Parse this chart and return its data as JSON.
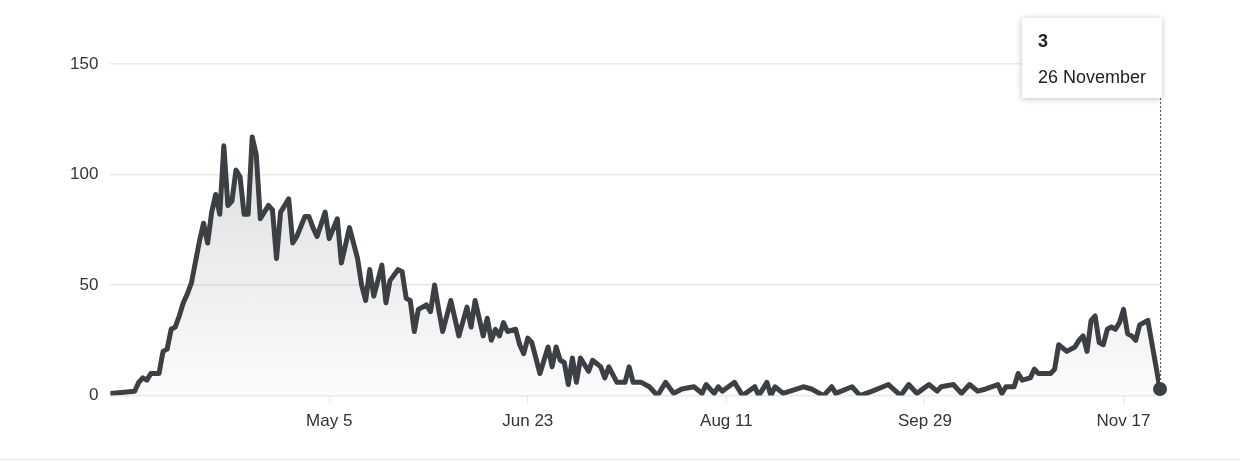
{
  "chart_data": {
    "type": "area",
    "x": [
      "--03-12",
      "--03-18",
      "--03-19",
      "--03-20",
      "--03-21",
      "--03-22",
      "--03-24",
      "--03-25",
      "--03-26",
      "--03-27",
      "--03-28",
      "--03-29",
      "--03-30",
      "--03-31",
      "--04-01",
      "--04-03",
      "--04-04",
      "--04-05",
      "--04-06",
      "--04-07",
      "--04-08",
      "--04-09",
      "--04-10",
      "--04-11",
      "--04-12",
      "--04-13",
      "--04-14",
      "--04-15",
      "--04-16",
      "--04-17",
      "--04-18",
      "--04-20",
      "--04-21",
      "--04-22",
      "--04-23",
      "--04-25",
      "--04-26",
      "--04-27",
      "--04-29",
      "--04-30",
      "--05-01",
      "--05-02",
      "--05-04",
      "--05-05",
      "--05-07",
      "--05-08",
      "--05-10",
      "--05-12",
      "--05-13",
      "--05-14",
      "--05-15",
      "--05-16",
      "--05-18",
      "--05-19",
      "--05-20",
      "--05-22",
      "--05-23",
      "--05-24",
      "--05-25",
      "--05-26",
      "--05-27",
      "--05-29",
      "--05-30",
      "--05-31",
      "--06-01",
      "--06-02",
      "--06-04",
      "--06-06",
      "--06-08",
      "--06-09",
      "--06-10",
      "--06-12",
      "--06-13",
      "--06-14",
      "--06-15",
      "--06-16",
      "--06-17",
      "--06-18",
      "--06-20",
      "--06-21",
      "--06-22",
      "--06-23",
      "--06-24",
      "--06-26",
      "--06-28",
      "--06-29",
      "--06-30",
      "--07-01",
      "--07-02",
      "--07-03",
      "--07-04",
      "--07-05",
      "--07-06",
      "--07-08",
      "--07-09",
      "--07-11",
      "--07-12",
      "--07-13",
      "--07-15",
      "--07-17",
      "--07-18",
      "--07-19",
      "--07-21",
      "--07-23",
      "--07-25",
      "--07-27",
      "--07-29",
      "--07-31",
      "--08-03",
      "--08-05",
      "--08-06",
      "--08-08",
      "--08-09",
      "--08-10",
      "--08-13",
      "--08-15",
      "--08-18",
      "--08-19",
      "--08-21",
      "--08-22",
      "--08-23",
      "--08-25",
      "--08-30",
      "--09-01",
      "--09-04",
      "--09-06",
      "--09-07",
      "--09-11",
      "--09-13",
      "--09-16",
      "--09-20",
      "--09-23",
      "--09-25",
      "--09-27",
      "--09-30",
      "--10-02",
      "--10-03",
      "--10-06",
      "--10-08",
      "--10-10",
      "--10-12",
      "--10-14",
      "--10-17",
      "--10-18",
      "--10-19",
      "--10-21",
      "--10-22",
      "--10-23",
      "--10-25",
      "--10-26",
      "--10-27",
      "--10-30",
      "--10-31",
      "--11-01",
      "--11-03",
      "--11-05",
      "--11-06",
      "--11-07",
      "--11-08",
      "--11-09",
      "--11-10",
      "--11-11",
      "--11-12",
      "--11-13",
      "--11-14",
      "--11-15",
      "--11-16",
      "--11-17",
      "--11-18",
      "--11-19",
      "--11-20",
      "--11-21",
      "--11-23",
      "--11-26"
    ],
    "series": [
      {
        "color": "#3c3f43",
        "values": [
          1,
          2,
          6,
          8,
          7,
          10,
          10,
          20,
          21,
          30,
          31,
          36,
          42,
          46,
          51,
          70,
          78,
          69,
          83,
          91,
          82,
          113,
          86,
          88,
          102,
          99,
          82,
          82,
          117,
          109,
          80,
          86,
          84,
          62,
          83,
          89,
          69,
          72,
          81,
          81,
          76,
          72,
          83,
          71,
          80,
          60,
          76,
          62,
          50,
          43,
          57,
          45,
          59,
          42,
          52,
          57,
          56,
          44,
          43,
          29,
          39,
          41,
          38,
          50,
          39,
          29,
          43,
          27,
          40,
          31,
          43,
          27,
          35,
          25,
          30,
          27,
          33,
          29,
          30,
          23,
          19,
          26,
          24,
          10,
          22,
          13,
          22,
          16,
          15,
          5,
          17,
          6,
          17,
          11,
          16,
          13,
          8,
          13,
          6,
          6,
          13,
          6,
          6,
          4,
          0,
          6,
          1,
          3,
          4,
          1,
          5,
          1,
          4,
          2,
          6,
          0,
          4,
          0,
          6,
          0,
          4,
          1,
          4,
          3,
          0,
          4,
          1,
          4,
          0,
          2,
          5,
          0,
          5,
          1,
          5,
          2,
          4,
          5,
          1,
          5,
          2,
          3,
          5,
          1,
          4,
          4,
          10,
          7,
          8,
          12,
          10,
          10,
          12,
          23,
          20,
          22,
          25,
          27,
          20,
          34,
          36,
          24,
          23,
          30,
          31,
          30,
          33,
          39,
          28,
          27,
          25,
          32,
          34,
          3
        ]
      }
    ],
    "xlim": [
      "--03-12",
      "--11-26"
    ],
    "xticks": [
      {
        "value": "--05-05",
        "label": "May 5"
      },
      {
        "value": "--06-23",
        "label": "Jun 23"
      },
      {
        "value": "--08-11",
        "label": "Aug 11"
      },
      {
        "value": "--09-29",
        "label": "Sep 29"
      },
      {
        "value": "--11-17",
        "label": "Nov 17"
      }
    ],
    "ylim": [
      0,
      150
    ],
    "yticks": [
      0,
      50,
      100,
      150
    ],
    "grid": "y",
    "legend": false,
    "marker": "none",
    "line_style": "solid",
    "annotations": [
      "3",
      "26 November"
    ]
  }
}
